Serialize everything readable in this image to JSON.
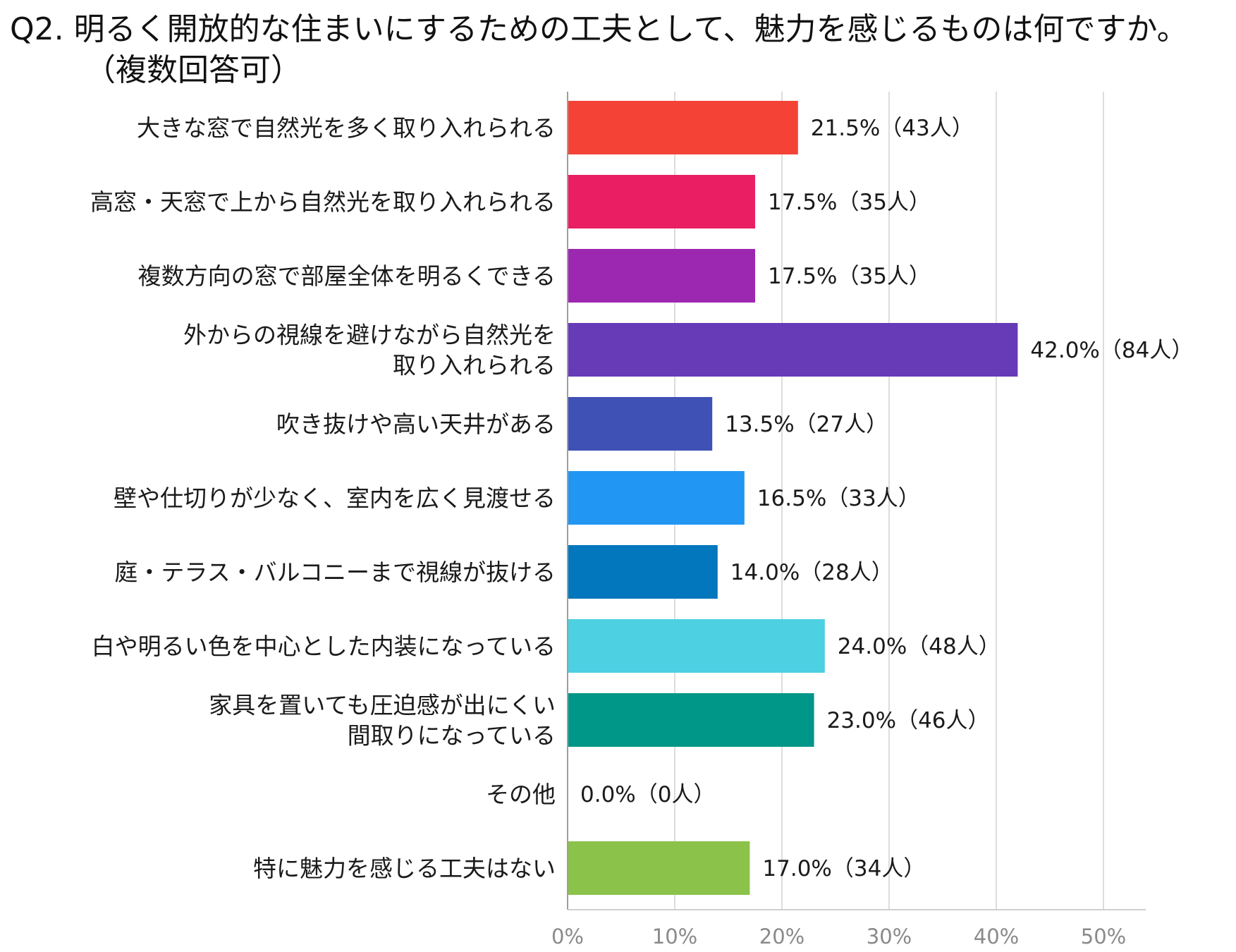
{
  "header": {
    "title_line1": "Q2. 明るく開放的な住まいにするための工夫として、魅力を感じるものは何ですか。",
    "title_line2": "（複数回答可）"
  },
  "chart_data": {
    "type": "bar",
    "orientation": "horizontal",
    "title": "Q2. 明るく開放的な住まいにするための工夫として、魅力を感じるものは何ですか。（複数回答可）",
    "xlabel": "",
    "ylabel": "",
    "xlim": [
      0,
      50
    ],
    "ticks": [
      0,
      10,
      20,
      30,
      40,
      50
    ],
    "tick_labels": [
      "0%",
      "10%",
      "20%",
      "30%",
      "40%",
      "50%"
    ],
    "grid": true,
    "categories": [
      [
        "大きな窓で自然光を多く取り入れられる"
      ],
      [
        "高窓・天窓で上から自然光を取り入れられる"
      ],
      [
        "複数方向の窓で部屋全体を明るくできる"
      ],
      [
        "外からの視線を避けながら自然光を",
        "取り入れられる"
      ],
      [
        "吹き抜けや高い天井がある"
      ],
      [
        "壁や仕切りが少なく、室内を広く見渡せる"
      ],
      [
        "庭・テラス・バルコニーまで視線が抜ける"
      ],
      [
        "白や明るい色を中心とした内装になっている"
      ],
      [
        "家具を置いても圧迫感が出にくい",
        "間取りになっている"
      ],
      [
        "その他"
      ],
      [
        "特に魅力を感じる工夫はない"
      ]
    ],
    "values": [
      21.5,
      17.5,
      17.5,
      42.0,
      13.5,
      16.5,
      14.0,
      24.0,
      23.0,
      0.0,
      17.0
    ],
    "value_labels": [
      "21.5%（43人）",
      "17.5%（35人）",
      "17.5%（35人）",
      "42.0%（84人）",
      "13.5%（27人）",
      "16.5%（33人）",
      "14.0%（28人）",
      "24.0%（48人）",
      "23.0%（46人）",
      "0.0%（0人）",
      "17.0%（34人）"
    ],
    "colors": [
      "#f44336",
      "#e91e63",
      "#9c27b0",
      "#673ab7",
      "#3f51b5",
      "#2196f3",
      "#0277bd",
      "#4dd0e1",
      "#009688",
      "#4caf50",
      "#8bc34a"
    ]
  }
}
